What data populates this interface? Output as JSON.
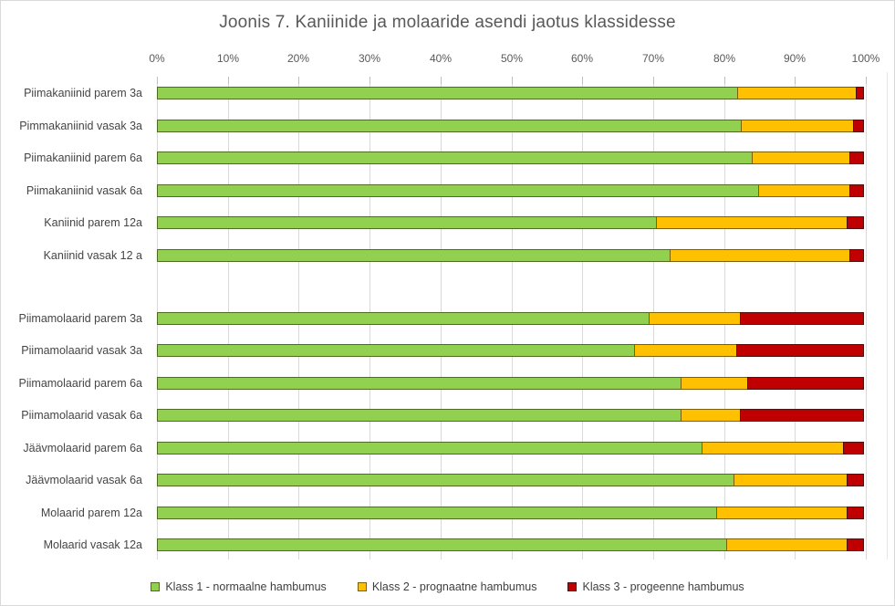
{
  "chart_data": {
    "type": "bar",
    "variant": "horizontal-stacked-100",
    "title": "Joonis 7. Kaniinide ja molaaride asendi jaotus klassidesse",
    "categories": [
      "Piimakaniinid parem 3a",
      "Pimmakaniinid vasak 3a",
      "Piimakaniinid parem 6a",
      "Piimakaniinid vasak 6a",
      "Kaniinid parem 12a",
      "Kaniinid vasak 12 a",
      "Piimamolaarid parem 3a",
      "Piimamolaarid vasak 3a",
      "Piimamolaarid parem 6a",
      "Piimamolaarid vasak 6a",
      "Jäävmolaarid parem 6a",
      "Jäävmolaarid vasak 6a",
      "Molaarid parem 12a",
      "Molaarid vasak 12a"
    ],
    "series": [
      {
        "name": "Klass 1 - normaalne hambumus",
        "color": "#92D050",
        "border_color": "#4F6B21",
        "values": [
          82,
          82.5,
          84,
          85,
          70.5,
          72.5,
          69.5,
          67.5,
          74,
          74,
          77,
          81.5,
          79,
          80.5
        ]
      },
      {
        "name": "Klass 2 - prognaatne hambumus",
        "color": "#FFC000",
        "border_color": "#7F6000",
        "values": [
          16.8,
          16,
          14,
          13,
          27,
          25.5,
          13,
          14.5,
          9.5,
          8.5,
          20,
          16,
          18.5,
          17
        ]
      },
      {
        "name": "Klass 3 - progeenne hambumus",
        "color": "#C00000",
        "border_color": "#4C1212",
        "values": [
          1.2,
          1.5,
          2,
          2,
          2.5,
          2,
          17.5,
          18,
          16.5,
          17.5,
          3,
          2.5,
          2.5,
          2.5
        ]
      }
    ],
    "x_ticks": [
      "0%",
      "10%",
      "20%",
      "30%",
      "40%",
      "50%",
      "60%",
      "70%",
      "80%",
      "90%",
      "100%"
    ],
    "xlim": [
      0,
      100
    ],
    "grid": true,
    "legend_position": "bottom",
    "gap_after_category_index": 5,
    "grid_color": "#D9D9D9",
    "text_color": "#595959"
  }
}
